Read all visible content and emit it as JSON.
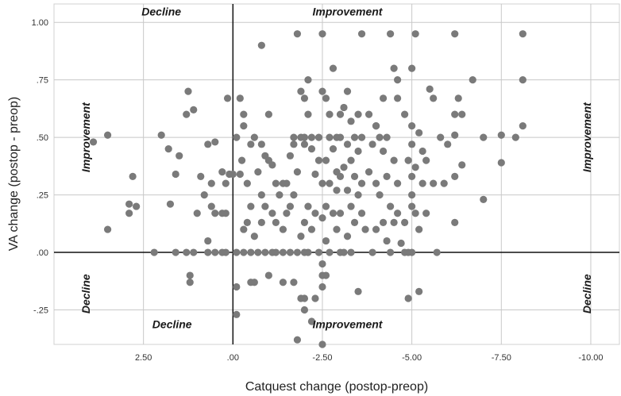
{
  "chart_data": {
    "type": "scatter",
    "xlabel": "Catquest change (postop-preop)",
    "ylabel": "VA change (postop - preop)",
    "xlim": [
      5.0,
      -10.8
    ],
    "ylim": [
      -0.4,
      1.08
    ],
    "x_axis_reversed": true,
    "grid": true,
    "x_ticks": [
      2.5,
      0.0,
      -2.5,
      -5.0,
      -7.5,
      -10.0
    ],
    "x_tick_labels": [
      "2.50",
      ".00",
      "-2.50",
      "-5.00",
      "-7.50",
      "-10.00"
    ],
    "y_ticks": [
      -0.25,
      0.0,
      0.25,
      0.5,
      0.75,
      1.0
    ],
    "y_tick_labels": [
      "-.25",
      ".00",
      ".25",
      ".50",
      ".75",
      "1.00"
    ],
    "reference_lines": {
      "x": 0.0,
      "y": 0.0
    },
    "point_color": "#7a7a7a",
    "annotations": [
      {
        "text": "Decline",
        "x": 2.0,
        "y": 1.03,
        "rotation": 0
      },
      {
        "text": "Improvement",
        "x": -3.2,
        "y": 1.03,
        "rotation": 0
      },
      {
        "text": "Decline",
        "x": 1.7,
        "y": -0.33,
        "rotation": 0
      },
      {
        "text": "Improvement",
        "x": -3.2,
        "y": -0.33,
        "rotation": 0
      },
      {
        "text": "Improvement",
        "x": 4.0,
        "y": 0.5,
        "rotation": -90
      },
      {
        "text": "Decline",
        "x": 4.0,
        "y": -0.18,
        "rotation": -90
      },
      {
        "text": "Improvement",
        "x": -10.0,
        "y": 0.5,
        "rotation": -90
      },
      {
        "text": "Decline",
        "x": -10.0,
        "y": -0.18,
        "rotation": -90
      }
    ],
    "points": [
      [
        3.9,
        0.48
      ],
      [
        3.5,
        0.51
      ],
      [
        3.5,
        0.1
      ],
      [
        2.8,
        0.33
      ],
      [
        2.9,
        0.21
      ],
      [
        2.7,
        0.2
      ],
      [
        2.9,
        0.17
      ],
      [
        2.0,
        0.51
      ],
      [
        1.8,
        0.45
      ],
      [
        1.6,
        0.34
      ],
      [
        2.2,
        0.0
      ],
      [
        1.6,
        0.0
      ],
      [
        1.3,
        0.0
      ],
      [
        1.1,
        0.0
      ],
      [
        0.7,
        0.0
      ],
      [
        0.5,
        0.0
      ],
      [
        0.3,
        0.0
      ],
      [
        0.2,
        0.0
      ],
      [
        1.25,
        0.7
      ],
      [
        1.1,
        0.62
      ],
      [
        1.3,
        0.6
      ],
      [
        1.5,
        0.42
      ],
      [
        1.75,
        0.21
      ],
      [
        0.7,
        0.47
      ],
      [
        0.5,
        0.48
      ],
      [
        0.6,
        0.3
      ],
      [
        0.3,
        0.35
      ],
      [
        0.1,
        0.34
      ],
      [
        0.9,
        0.33
      ],
      [
        0.8,
        0.25
      ],
      [
        1.0,
        0.17
      ],
      [
        0.6,
        0.2
      ],
      [
        0.3,
        0.17
      ],
      [
        0.2,
        0.17
      ],
      [
        0.5,
        0.17
      ],
      [
        0.7,
        0.05
      ],
      [
        1.2,
        -0.13
      ],
      [
        1.2,
        -0.1
      ],
      [
        0.15,
        0.67
      ],
      [
        0.2,
        0.3
      ],
      [
        0.0,
        0.34
      ],
      [
        -0.2,
        0.34
      ],
      [
        -0.25,
        0.4
      ],
      [
        -0.2,
        0.67
      ],
      [
        -0.1,
        0.5
      ],
      [
        -0.3,
        0.6
      ],
      [
        -0.3,
        0.55
      ],
      [
        -0.4,
        0.3
      ],
      [
        -0.5,
        0.2
      ],
      [
        -0.4,
        0.13
      ],
      [
        -0.3,
        0.1
      ],
      [
        -0.6,
        0.07
      ],
      [
        -0.1,
        0.0
      ],
      [
        -0.1,
        -0.27
      ],
      [
        -0.1,
        -0.15
      ],
      [
        -0.3,
        0.0
      ],
      [
        -0.5,
        0.0
      ],
      [
        -0.7,
        0.0
      ],
      [
        -0.9,
        0.0
      ],
      [
        -1.1,
        0.0
      ],
      [
        -1.2,
        0.0
      ],
      [
        -1.4,
        0.0
      ],
      [
        -1.6,
        0.0
      ],
      [
        -0.6,
        0.5
      ],
      [
        -0.8,
        0.47
      ],
      [
        -0.9,
        0.42
      ],
      [
        -1.0,
        0.4
      ],
      [
        -1.1,
        0.38
      ],
      [
        -0.7,
        0.35
      ],
      [
        -1.2,
        0.3
      ],
      [
        -1.4,
        0.3
      ],
      [
        -0.8,
        0.25
      ],
      [
        -0.9,
        0.2
      ],
      [
        -1.1,
        0.17
      ],
      [
        -1.2,
        0.13
      ],
      [
        -1.4,
        0.1
      ],
      [
        -1.5,
        0.17
      ],
      [
        -1.6,
        0.2
      ],
      [
        -1.3,
        0.25
      ],
      [
        -1.7,
        0.25
      ],
      [
        -1.5,
        0.3
      ],
      [
        -1.8,
        0.35
      ],
      [
        -1.6,
        0.42
      ],
      [
        -1.7,
        0.47
      ],
      [
        -0.6,
        -0.13
      ],
      [
        -0.5,
        -0.13
      ],
      [
        -1.0,
        -0.1
      ],
      [
        -1.4,
        -0.13
      ],
      [
        -0.8,
        0.13
      ],
      [
        -1.0,
        0.6
      ],
      [
        -0.5,
        0.47
      ],
      [
        -0.8,
        0.9
      ],
      [
        -1.8,
        0.95
      ],
      [
        -1.9,
        0.7
      ],
      [
        -2.0,
        0.67
      ],
      [
        -2.1,
        0.6
      ],
      [
        -2.1,
        0.75
      ],
      [
        -1.7,
        0.5
      ],
      [
        -1.9,
        0.5
      ],
      [
        -2.0,
        0.5
      ],
      [
        -2.2,
        0.5
      ],
      [
        -2.4,
        0.5
      ],
      [
        -2.0,
        0.47
      ],
      [
        -2.2,
        0.45
      ],
      [
        -2.4,
        0.4
      ],
      [
        -2.3,
        0.34
      ],
      [
        -2.5,
        0.3
      ],
      [
        -2.1,
        0.2
      ],
      [
        -2.3,
        0.17
      ],
      [
        -2.5,
        0.15
      ],
      [
        -2.0,
        0.13
      ],
      [
        -2.2,
        0.1
      ],
      [
        -1.9,
        0.07
      ],
      [
        -1.8,
        0.0
      ],
      [
        -2.0,
        0.0
      ],
      [
        -2.1,
        0.0
      ],
      [
        -2.4,
        0.0
      ],
      [
        -2.7,
        0.0
      ],
      [
        -2.5,
        -0.1
      ],
      [
        -2.5,
        -0.15
      ],
      [
        -1.7,
        -0.13
      ],
      [
        -2.0,
        -0.2
      ],
      [
        -2.3,
        -0.2
      ],
      [
        -2.2,
        -0.3
      ],
      [
        -2.0,
        -0.25
      ],
      [
        -1.8,
        -0.38
      ],
      [
        -1.9,
        -0.2
      ],
      [
        -2.5,
        0.7
      ],
      [
        -2.6,
        0.67
      ],
      [
        -2.7,
        0.6
      ],
      [
        -2.8,
        0.8
      ],
      [
        -2.5,
        0.95
      ],
      [
        -2.7,
        0.5
      ],
      [
        -2.9,
        0.5
      ],
      [
        -3.0,
        0.5
      ],
      [
        -2.8,
        0.45
      ],
      [
        -2.6,
        0.4
      ],
      [
        -2.9,
        0.35
      ],
      [
        -3.0,
        0.33
      ],
      [
        -2.7,
        0.3
      ],
      [
        -2.9,
        0.27
      ],
      [
        -2.6,
        0.2
      ],
      [
        -2.8,
        0.17
      ],
      [
        -3.0,
        0.17
      ],
      [
        -2.9,
        0.1
      ],
      [
        -2.6,
        0.05
      ],
      [
        -3.0,
        0.0
      ],
      [
        -3.1,
        0.0
      ],
      [
        -3.3,
        0.0
      ],
      [
        -2.5,
        -0.05
      ],
      [
        -2.5,
        -0.4
      ],
      [
        -2.6,
        -0.1
      ],
      [
        -3.0,
        0.6
      ],
      [
        -3.1,
        0.63
      ],
      [
        -3.2,
        0.7
      ],
      [
        -3.3,
        0.57
      ],
      [
        -3.5,
        0.6
      ],
      [
        -3.4,
        0.5
      ],
      [
        -3.6,
        0.5
      ],
      [
        -3.2,
        0.47
      ],
      [
        -3.5,
        0.44
      ],
      [
        -3.3,
        0.4
      ],
      [
        -3.1,
        0.37
      ],
      [
        -3.4,
        0.33
      ],
      [
        -3.6,
        0.3
      ],
      [
        -3.2,
        0.27
      ],
      [
        -3.5,
        0.25
      ],
      [
        -3.3,
        0.2
      ],
      [
        -3.6,
        0.17
      ],
      [
        -3.4,
        0.13
      ],
      [
        -3.7,
        0.1
      ],
      [
        -3.2,
        0.07
      ],
      [
        -3.9,
        0.0
      ],
      [
        -3.5,
        -0.17
      ],
      [
        -3.6,
        0.95
      ],
      [
        -3.8,
        0.6
      ],
      [
        -4.0,
        0.55
      ],
      [
        -4.1,
        0.5
      ],
      [
        -4.3,
        0.5
      ],
      [
        -3.9,
        0.47
      ],
      [
        -4.2,
        0.44
      ],
      [
        -4.5,
        0.4
      ],
      [
        -3.8,
        0.35
      ],
      [
        -4.0,
        0.3
      ],
      [
        -4.3,
        0.33
      ],
      [
        -4.6,
        0.3
      ],
      [
        -4.1,
        0.25
      ],
      [
        -4.4,
        0.2
      ],
      [
        -4.6,
        0.17
      ],
      [
        -4.2,
        0.13
      ],
      [
        -4.5,
        0.13
      ],
      [
        -4.0,
        0.1
      ],
      [
        -4.3,
        0.05
      ],
      [
        -4.7,
        0.04
      ],
      [
        -4.4,
        0.0
      ],
      [
        -4.9,
        0.0
      ],
      [
        -4.4,
        0.95
      ],
      [
        -4.5,
        0.8
      ],
      [
        -4.6,
        0.75
      ],
      [
        -4.2,
        0.67
      ],
      [
        -4.6,
        0.67
      ],
      [
        -4.0,
        0.55
      ],
      [
        -4.8,
        0.6
      ],
      [
        -5.0,
        0.55
      ],
      [
        -5.2,
        0.52
      ],
      [
        -5.0,
        0.47
      ],
      [
        -5.3,
        0.44
      ],
      [
        -4.9,
        0.4
      ],
      [
        -5.4,
        0.4
      ],
      [
        -5.1,
        0.37
      ],
      [
        -5.0,
        0.33
      ],
      [
        -5.3,
        0.3
      ],
      [
        -5.6,
        0.3
      ],
      [
        -5.0,
        0.25
      ],
      [
        -5.0,
        0.2
      ],
      [
        -5.4,
        0.17
      ],
      [
        -5.1,
        0.17
      ],
      [
        -4.8,
        0.13
      ],
      [
        -5.2,
        0.1
      ],
      [
        -5.0,
        0.0
      ],
      [
        -5.7,
        0.0
      ],
      [
        -4.9,
        -0.2
      ],
      [
        -5.2,
        -0.17
      ],
      [
        -4.8,
        0.0
      ],
      [
        -5.0,
        0.8
      ],
      [
        -5.5,
        0.71
      ],
      [
        -5.6,
        0.67
      ],
      [
        -5.1,
        0.95
      ],
      [
        -5.8,
        0.5
      ],
      [
        -6.0,
        0.47
      ],
      [
        -5.9,
        0.3
      ],
      [
        -6.2,
        0.33
      ],
      [
        -6.4,
        0.38
      ],
      [
        -6.2,
        0.13
      ],
      [
        -6.2,
        0.6
      ],
      [
        -6.3,
        0.67
      ],
      [
        -6.4,
        0.6
      ],
      [
        -6.7,
        0.75
      ],
      [
        -6.2,
        0.95
      ],
      [
        -6.2,
        0.51
      ],
      [
        -7.0,
        0.5
      ],
      [
        -7.0,
        0.23
      ],
      [
        -7.5,
        0.51
      ],
      [
        -7.5,
        0.39
      ],
      [
        -7.9,
        0.5
      ],
      [
        -8.1,
        0.55
      ],
      [
        -8.1,
        0.75
      ],
      [
        -8.1,
        0.95
      ]
    ]
  }
}
